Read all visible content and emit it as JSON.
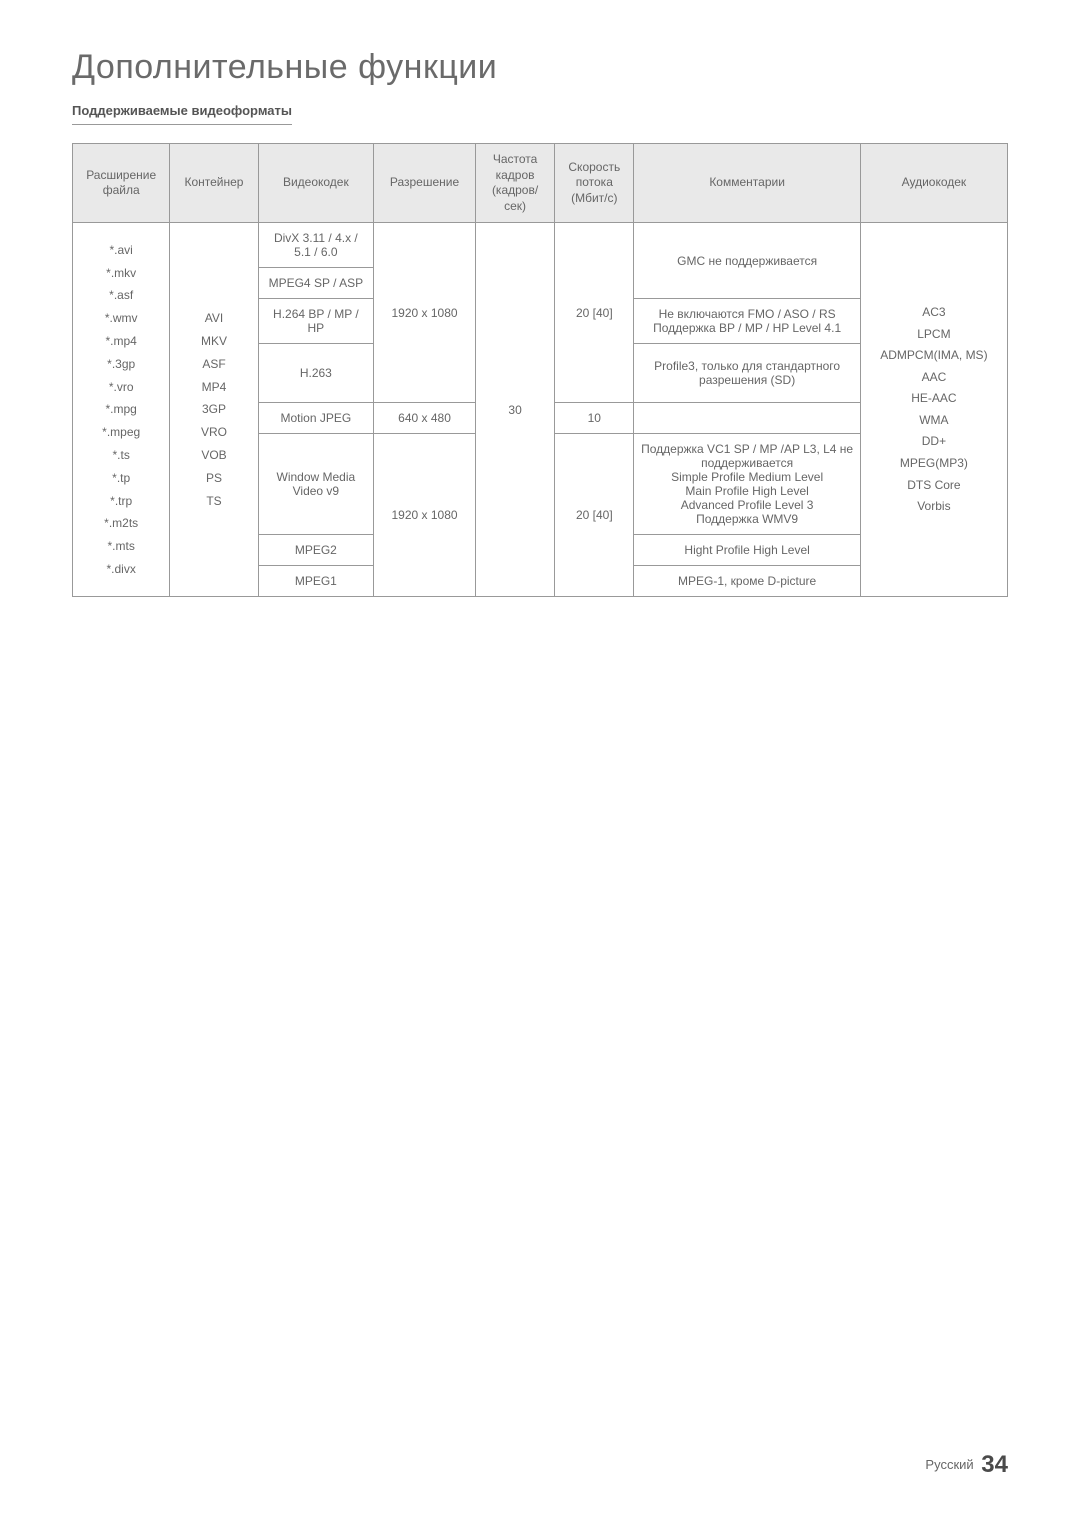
{
  "page": {
    "title": "Дополнительные функции",
    "subtitle": "Поддерживаемые видеоформаты",
    "footer_label": "Русский",
    "page_number": "34"
  },
  "table": {
    "headers": {
      "ext": "Расширение файла",
      "container": "Контейнер",
      "vcodec": "Видеокодек",
      "resolution": "Разрешение",
      "fps": "Частота кадров (кадров/сек)",
      "bitrate": "Скорость потока (Мбит/с)",
      "comments": "Комментарии",
      "acodec": "Аудиокодек"
    },
    "extensions": "*.avi\n*.mkv\n*.asf\n*.wmv\n*.mp4\n*.3gp\n*.vro\n*.mpg\n*.mpeg\n*.ts\n*.tp\n*.trp\n*.m2ts\n*.mts\n*.divx",
    "container": "AVI\nMKV\nASF\nMP4\n3GP\nVRO\nVOB\nPS\nTS",
    "vcodecs": {
      "divx": "DivX 3.11 / 4.x / 5.1 / 6.0",
      "mpeg4sp": "MPEG4 SP / ASP",
      "h264": "H.264 BP / MP / HP",
      "h263": "H.263",
      "mjpeg": "Motion JPEG",
      "wmv": "Window Media Video v9",
      "mpeg2": "MPEG2",
      "mpeg1": "MPEG1"
    },
    "resolutions": {
      "r1": "1920 x 1080",
      "r2": "640 x 480",
      "r3": "1920 x 1080"
    },
    "fps": "30",
    "bitrates": {
      "b1": "20 [40]",
      "b2": "10",
      "b3": "20 [40]"
    },
    "comments": {
      "c1": "GMC не поддерживается",
      "c2": "Не включаются FMO / ASO / RS\nПоддержка BP / MP / HP Level 4.1",
      "c3": "Profile3, только для стандартного разрешения (SD)",
      "c4": "",
      "c5": "Поддержка VC1 SP / MP /AP L3, L4 не поддерживается\nSimple Profile Medium Level\nMain Profile High Level\nAdvanced Profile Level 3\nПоддержка WMV9",
      "c6": "Hight Profile High Level",
      "c7": "MPEG-1, кроме D-picture"
    },
    "acodec": "AC3\nLPCM\nADMPCM(IMA, MS)\nAAC\nHE-AAC\nWMA\nDD+\nMPEG(MP3)\nDTS Core\nVorbis"
  }
}
